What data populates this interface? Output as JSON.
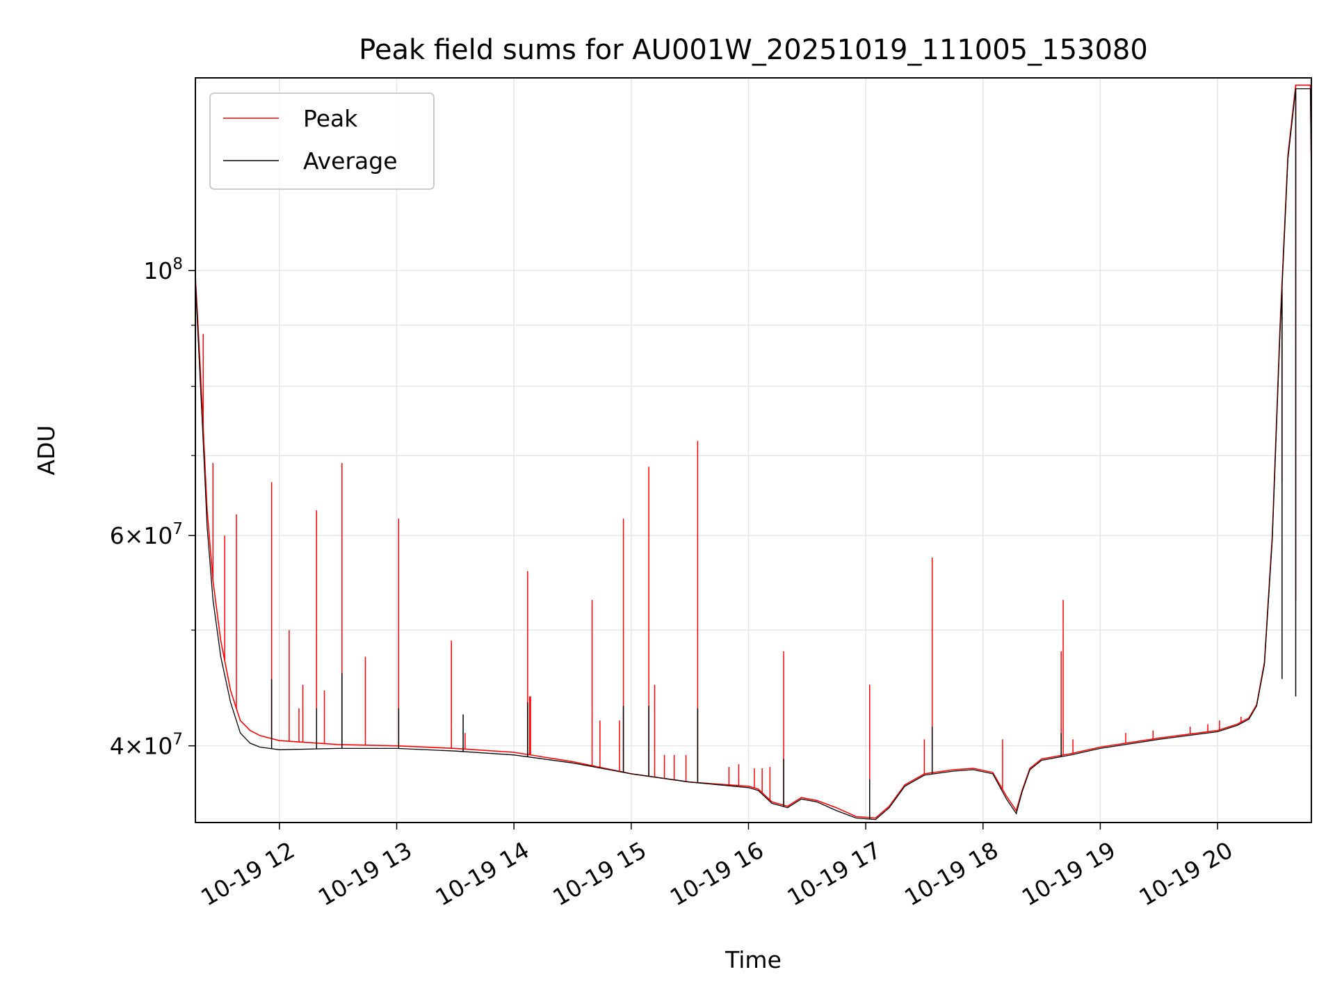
{
  "chart_data": {
    "type": "line",
    "title": "Peak field sums for AU001W_20251019_111005_153080",
    "xlabel": "Time",
    "ylabel": "ADU",
    "x_type": "datetime",
    "xlim": [
      "2025-10-19T11:17:00",
      "2025-10-19T20:48:00"
    ],
    "y_scale": "log",
    "ylim": [
      34500000,
      145000000
    ],
    "grid": true,
    "legend_position": "upper-left",
    "x_ticks": [
      {
        "value": "2025-10-19T12:00:00",
        "label": "10-19 12"
      },
      {
        "value": "2025-10-19T13:00:00",
        "label": "10-19 13"
      },
      {
        "value": "2025-10-19T14:00:00",
        "label": "10-19 14"
      },
      {
        "value": "2025-10-19T15:00:00",
        "label": "10-19 15"
      },
      {
        "value": "2025-10-19T16:00:00",
        "label": "10-19 16"
      },
      {
        "value": "2025-10-19T17:00:00",
        "label": "10-19 17"
      },
      {
        "value": "2025-10-19T18:00:00",
        "label": "10-19 18"
      },
      {
        "value": "2025-10-19T19:00:00",
        "label": "10-19 19"
      },
      {
        "value": "2025-10-19T20:00:00",
        "label": "10-19 20"
      }
    ],
    "y_major_ticks": [
      {
        "value": 100000000,
        "label_base": "10",
        "label_exp": "8"
      },
      {
        "value": 60000000,
        "label_base": "6×10",
        "label_exp": "7"
      },
      {
        "value": 40000000,
        "label_base": "4×10",
        "label_exp": "7"
      }
    ],
    "y_minor_ticks": [
      50000000,
      70000000,
      80000000,
      90000000
    ],
    "series": [
      {
        "name": "Peak",
        "color": "#ff0000",
        "x": [
          "2025-10-19T11:17:00",
          "2025-10-19T11:19:00",
          "2025-10-19T11:21:00",
          "2025-10-19T11:23:00",
          "2025-10-19T11:26:00",
          "2025-10-19T11:30:00",
          "2025-10-19T11:35:00",
          "2025-10-19T11:40:00",
          "2025-10-19T11:45:00",
          "2025-10-19T11:50:00",
          "2025-10-19T12:00:00",
          "2025-10-19T12:30:00",
          "2025-10-19T13:00:00",
          "2025-10-19T13:30:00",
          "2025-10-19T14:00:00",
          "2025-10-19T14:30:00",
          "2025-10-19T15:00:00",
          "2025-10-19T15:30:00",
          "2025-10-19T16:00:00",
          "2025-10-19T16:05:00",
          "2025-10-19T16:12:00",
          "2025-10-19T16:20:00",
          "2025-10-19T16:27:00",
          "2025-10-19T16:35:00",
          "2025-10-19T16:45:00",
          "2025-10-19T16:55:00",
          "2025-10-19T17:05:00",
          "2025-10-19T17:12:00",
          "2025-10-19T17:20:00",
          "2025-10-19T17:30:00",
          "2025-10-19T17:45:00",
          "2025-10-19T17:55:00",
          "2025-10-19T18:05:00",
          "2025-10-19T18:12:00",
          "2025-10-19T18:17:00",
          "2025-10-19T18:20:00",
          "2025-10-19T18:24:00",
          "2025-10-19T18:30:00",
          "2025-10-19T18:45:00",
          "2025-10-19T19:00:00",
          "2025-10-19T19:30:00",
          "2025-10-19T20:00:00",
          "2025-10-19T20:10:00",
          "2025-10-19T20:16:00",
          "2025-10-19T20:20:00",
          "2025-10-19T20:24:00",
          "2025-10-19T20:28:00",
          "2025-10-19T20:32:00",
          "2025-10-19T20:36:00",
          "2025-10-19T20:40:00",
          "2025-10-19T20:43:00",
          "2025-10-19T20:46:00",
          "2025-10-19T20:47:30",
          "2025-10-19T20:48:00"
        ],
        "y": [
          99000000,
          86000000,
          74000000,
          63000000,
          55000000,
          49000000,
          44500000,
          42000000,
          41200000,
          40800000,
          40400000,
          40100000,
          40000000,
          39800000,
          39500000,
          38800000,
          37900000,
          37300000,
          37000000,
          36800000,
          35900000,
          35600000,
          36200000,
          36000000,
          35500000,
          34900000,
          34800000,
          35600000,
          37100000,
          37900000,
          38200000,
          38300000,
          38000000,
          36300000,
          35300000,
          36700000,
          38300000,
          39000000,
          39400000,
          39900000,
          40600000,
          41200000,
          41700000,
          42200000,
          43300000,
          47000000,
          60000000,
          90000000,
          125000000,
          143000000,
          143000000,
          143000000,
          143000000,
          120000000
        ],
        "spikes": [
          {
            "x": "2025-10-19T11:21:00",
            "y": 88500000
          },
          {
            "x": "2025-10-19T11:26:00",
            "y": 69000000
          },
          {
            "x": "2025-10-19T11:32:00",
            "y": 60000000
          },
          {
            "x": "2025-10-19T11:38:00",
            "y": 62500000
          },
          {
            "x": "2025-10-19T11:56:00",
            "y": 66500000
          },
          {
            "x": "2025-10-19T12:05:00",
            "y": 50000000
          },
          {
            "x": "2025-10-19T12:10:00",
            "y": 43000000
          },
          {
            "x": "2025-10-19T12:12:00",
            "y": 45000000
          },
          {
            "x": "2025-10-19T12:19:00",
            "y": 63000000
          },
          {
            "x": "2025-10-19T12:23:00",
            "y": 44500000
          },
          {
            "x": "2025-10-19T12:32:00",
            "y": 69000000
          },
          {
            "x": "2025-10-19T12:44:00",
            "y": 47500000
          },
          {
            "x": "2025-10-19T13:01:00",
            "y": 62000000
          },
          {
            "x": "2025-10-19T13:28:00",
            "y": 49000000
          },
          {
            "x": "2025-10-19T13:35:00",
            "y": 41000000
          },
          {
            "x": "2025-10-19T14:07:00",
            "y": 56000000
          },
          {
            "x": "2025-10-19T14:08:00",
            "y": 44000000
          },
          {
            "x": "2025-10-19T14:08:30",
            "y": 44000000
          },
          {
            "x": "2025-10-19T14:40:00",
            "y": 53000000
          },
          {
            "x": "2025-10-19T14:44:00",
            "y": 42000000
          },
          {
            "x": "2025-10-19T14:54:00",
            "y": 42000000
          },
          {
            "x": "2025-10-19T14:56:00",
            "y": 62000000
          },
          {
            "x": "2025-10-19T15:09:00",
            "y": 68500000
          },
          {
            "x": "2025-10-19T15:12:00",
            "y": 45000000
          },
          {
            "x": "2025-10-19T15:17:00",
            "y": 39300000
          },
          {
            "x": "2025-10-19T15:22:00",
            "y": 39300000
          },
          {
            "x": "2025-10-19T15:28:00",
            "y": 39300000
          },
          {
            "x": "2025-10-19T15:34:00",
            "y": 72000000
          },
          {
            "x": "2025-10-19T15:50:00",
            "y": 38400000
          },
          {
            "x": "2025-10-19T15:55:00",
            "y": 38600000
          },
          {
            "x": "2025-10-19T16:03:00",
            "y": 38300000
          },
          {
            "x": "2025-10-19T16:07:00",
            "y": 38300000
          },
          {
            "x": "2025-10-19T16:11:00",
            "y": 38400000
          },
          {
            "x": "2025-10-19T16:18:00",
            "y": 48000000
          },
          {
            "x": "2025-10-19T17:02:00",
            "y": 45000000
          },
          {
            "x": "2025-10-19T17:30:00",
            "y": 40500000
          },
          {
            "x": "2025-10-19T17:34:00",
            "y": 57500000
          },
          {
            "x": "2025-10-19T18:10:00",
            "y": 40500000
          },
          {
            "x": "2025-10-19T18:40:00",
            "y": 48000000
          },
          {
            "x": "2025-10-19T18:41:00",
            "y": 53000000
          },
          {
            "x": "2025-10-19T18:46:00",
            "y": 40500000
          },
          {
            "x": "2025-10-19T19:13:00",
            "y": 41000000
          },
          {
            "x": "2025-10-19T19:27:00",
            "y": 41200000
          },
          {
            "x": "2025-10-19T19:46:00",
            "y": 41500000
          },
          {
            "x": "2025-10-19T19:55:00",
            "y": 41700000
          },
          {
            "x": "2025-10-19T20:01:00",
            "y": 42000000
          },
          {
            "x": "2025-10-19T20:12:00",
            "y": 42300000
          },
          {
            "x": "2025-10-19T20:33:00",
            "y": 66500000
          },
          {
            "x": "2025-10-19T20:40:00",
            "y": 53000000
          },
          {
            "x": "2025-10-19T20:48:00",
            "y": 74000000
          }
        ]
      },
      {
        "name": "Average",
        "color": "#000000",
        "x": [
          "2025-10-19T11:17:00",
          "2025-10-19T11:19:00",
          "2025-10-19T11:21:00",
          "2025-10-19T11:23:00",
          "2025-10-19T11:26:00",
          "2025-10-19T11:30:00",
          "2025-10-19T11:35:00",
          "2025-10-19T11:40:00",
          "2025-10-19T11:45:00",
          "2025-10-19T11:50:00",
          "2025-10-19T12:00:00",
          "2025-10-19T12:30:00",
          "2025-10-19T13:00:00",
          "2025-10-19T13:30:00",
          "2025-10-19T14:00:00",
          "2025-10-19T14:30:00",
          "2025-10-19T15:00:00",
          "2025-10-19T15:30:00",
          "2025-10-19T16:00:00",
          "2025-10-19T16:05:00",
          "2025-10-19T16:12:00",
          "2025-10-19T16:20:00",
          "2025-10-19T16:27:00",
          "2025-10-19T16:35:00",
          "2025-10-19T16:45:00",
          "2025-10-19T16:55:00",
          "2025-10-19T17:05:00",
          "2025-10-19T17:12:00",
          "2025-10-19T17:20:00",
          "2025-10-19T17:30:00",
          "2025-10-19T17:45:00",
          "2025-10-19T17:55:00",
          "2025-10-19T18:05:00",
          "2025-10-19T18:12:00",
          "2025-10-19T18:17:00",
          "2025-10-19T18:20:00",
          "2025-10-19T18:24:00",
          "2025-10-19T18:30:00",
          "2025-10-19T18:45:00",
          "2025-10-19T19:00:00",
          "2025-10-19T19:30:00",
          "2025-10-19T20:00:00",
          "2025-10-19T20:10:00",
          "2025-10-19T20:16:00",
          "2025-10-19T20:20:00",
          "2025-10-19T20:24:00",
          "2025-10-19T20:28:00",
          "2025-10-19T20:32:00",
          "2025-10-19T20:36:00",
          "2025-10-19T20:40:00",
          "2025-10-19T20:43:00",
          "2025-10-19T20:46:00",
          "2025-10-19T20:47:30",
          "2025-10-19T20:48:00"
        ],
        "y": [
          98000000,
          84000000,
          72000000,
          61000000,
          53000000,
          47500000,
          43500000,
          41000000,
          40200000,
          39900000,
          39700000,
          39800000,
          39800000,
          39600000,
          39300000,
          38700000,
          37900000,
          37300000,
          36900000,
          36700000,
          35800000,
          35500000,
          36100000,
          35900000,
          35300000,
          34800000,
          34700000,
          35500000,
          37000000,
          37800000,
          38100000,
          38200000,
          37900000,
          36100000,
          35100000,
          36600000,
          38200000,
          38900000,
          39300000,
          39800000,
          40500000,
          41100000,
          41600000,
          42100000,
          43200000,
          46800000,
          59500000,
          89000000,
          124000000,
          142000000,
          142000000,
          142000000,
          142000000,
          119000000
        ],
        "spikes": [
          {
            "x": "2025-10-19T11:56:00",
            "y": 45500000
          },
          {
            "x": "2025-10-19T12:19:00",
            "y": 43000000
          },
          {
            "x": "2025-10-19T12:32:00",
            "y": 46000000
          },
          {
            "x": "2025-10-19T13:01:00",
            "y": 43000000
          },
          {
            "x": "2025-10-19T13:34:00",
            "y": 42500000
          },
          {
            "x": "2025-10-19T14:07:00",
            "y": 43500000
          },
          {
            "x": "2025-10-19T14:56:00",
            "y": 43200000
          },
          {
            "x": "2025-10-19T15:09:00",
            "y": 43200000
          },
          {
            "x": "2025-10-19T15:34:00",
            "y": 43000000
          },
          {
            "x": "2025-10-19T16:18:00",
            "y": 39000000
          },
          {
            "x": "2025-10-19T17:02:00",
            "y": 37500000
          },
          {
            "x": "2025-10-19T17:34:00",
            "y": 41500000
          },
          {
            "x": "2025-10-19T18:40:00",
            "y": 41000000
          },
          {
            "x": "2025-10-19T20:33:00",
            "y": 45500000
          },
          {
            "x": "2025-10-19T20:40:00",
            "y": 44000000
          },
          {
            "x": "2025-10-19T20:48:00",
            "y": 50000000
          }
        ]
      }
    ]
  }
}
